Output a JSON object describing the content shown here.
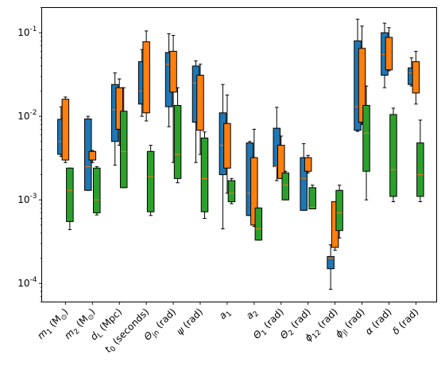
{
  "chart_data": {
    "type": "box",
    "y_scale": "log",
    "ylim": [
      6e-05,
      0.2
    ],
    "y_tick_labels": [
      "10^-4",
      "10^-3",
      "10^-2",
      "10^-1"
    ],
    "y_tick_values": [
      0.0001,
      0.001,
      0.01,
      0.1
    ],
    "legend": "none",
    "grid": false,
    "categories": [
      {
        "key": "m1",
        "base": "m",
        "sub": "1",
        "unit": " (M",
        "unit_sub": "⊙",
        "unit_end": ")"
      },
      {
        "key": "m2",
        "base": "m",
        "sub": "2",
        "unit": " (M",
        "unit_sub": "⊙",
        "unit_end": ")"
      },
      {
        "key": "dL",
        "base": "d",
        "sub": "L",
        "unit": " (Mpc)",
        "unit_sub": "",
        "unit_end": ""
      },
      {
        "key": "t0",
        "base": "t",
        "sub": "0",
        "unit": " (seconds)",
        "unit_sub": "",
        "unit_end": ""
      },
      {
        "key": "theta_jn",
        "base": "Θ",
        "sub": "jn",
        "unit": " (rad)",
        "unit_sub": "",
        "unit_end": ""
      },
      {
        "key": "psi",
        "base": "ψ",
        "sub": "",
        "unit": " (rad)",
        "unit_sub": "",
        "unit_end": ""
      },
      {
        "key": "a1",
        "base": "a",
        "sub": "1",
        "unit": "",
        "unit_sub": "",
        "unit_end": ""
      },
      {
        "key": "a2",
        "base": "a",
        "sub": "2",
        "unit": "",
        "unit_sub": "",
        "unit_end": ""
      },
      {
        "key": "theta1",
        "base": "Θ",
        "sub": "1",
        "unit": " (rad)",
        "unit_sub": "",
        "unit_end": ""
      },
      {
        "key": "theta2",
        "base": "Θ",
        "sub": "2",
        "unit": " (rad)",
        "unit_sub": "",
        "unit_end": ""
      },
      {
        "key": "phi12",
        "base": "ϕ",
        "sub": "12",
        "unit": " (rad)",
        "unit_sub": "",
        "unit_end": ""
      },
      {
        "key": "phi_jl",
        "base": "ϕ",
        "sub": "jl",
        "unit": " (rad)",
        "unit_sub": "",
        "unit_end": ""
      },
      {
        "key": "alpha",
        "base": "α",
        "sub": "",
        "unit": " (rad)",
        "unit_sub": "",
        "unit_end": ""
      },
      {
        "key": "delta",
        "base": "δ",
        "sub": "",
        "unit": " (rad)",
        "unit_sub": "",
        "unit_end": ""
      }
    ],
    "series": [
      {
        "color": "#1f77b4",
        "boxes": [
          {
            "whislo": 0.0033,
            "q1": 0.0035,
            "med": 0.005,
            "q3": 0.0092,
            "whishi": 0.013
          },
          {
            "whislo": 0.0013,
            "q1": 0.0013,
            "med": 0.0025,
            "q3": 0.0093,
            "whishi": 0.01
          },
          {
            "whislo": 0.0026,
            "q1": 0.005,
            "med": 0.012,
            "q3": 0.024,
            "whishi": 0.033
          },
          {
            "whislo": 0.01,
            "q1": 0.014,
            "med": 0.02,
            "q3": 0.045,
            "whishi": 0.063
          },
          {
            "whislo": 0.0075,
            "q1": 0.013,
            "med": 0.042,
            "q3": 0.058,
            "whishi": 0.097
          },
          {
            "whislo": 0.0028,
            "q1": 0.0085,
            "med": 0.025,
            "q3": 0.04,
            "whishi": 0.046
          },
          {
            "whislo": 0.00045,
            "q1": 0.002,
            "med": 0.0045,
            "q3": 0.011,
            "whishi": 0.024
          },
          {
            "whislo": 0.00065,
            "q1": 0.00065,
            "med": 0.0012,
            "q3": 0.0048,
            "whishi": 0.005
          },
          {
            "whislo": 0.0017,
            "q1": 0.0025,
            "med": 0.0025,
            "q3": 0.0072,
            "whishi": 0.0128
          },
          {
            "whislo": 0.00075,
            "q1": 0.00075,
            "med": 0.0018,
            "q3": 0.0032,
            "whishi": 0.0047
          },
          {
            "whislo": 8.5e-05,
            "q1": 0.00015,
            "med": 0.0002,
            "q3": 0.00021,
            "whishi": 0.00029
          },
          {
            "whislo": 0.0066,
            "q1": 0.0068,
            "med": 0.013,
            "q3": 0.08,
            "whishi": 0.145
          },
          {
            "whislo": 0.022,
            "q1": 0.031,
            "med": 0.055,
            "q3": 0.1,
            "whishi": 0.13
          },
          {
            "whislo": 0.023,
            "q1": 0.024,
            "med": 0.033,
            "q3": 0.038,
            "whishi": 0.05
          }
        ]
      },
      {
        "color": "#ff7f0e",
        "boxes": [
          {
            "whislo": 0.0028,
            "q1": 0.003,
            "med": 0.006,
            "q3": 0.016,
            "whishi": 0.017
          },
          {
            "whislo": 0.0028,
            "q1": 0.003,
            "med": 0.0035,
            "q3": 0.0038,
            "whishi": 0.0039
          },
          {
            "whislo": 0.0045,
            "q1": 0.007,
            "med": 0.015,
            "q3": 0.022,
            "whishi": 0.028
          },
          {
            "whislo": 0.0088,
            "q1": 0.011,
            "med": 0.025,
            "q3": 0.078,
            "whishi": 0.105
          },
          {
            "whislo": 0.0028,
            "q1": 0.0195,
            "med": 0.025,
            "q3": 0.06,
            "whishi": 0.093
          },
          {
            "whislo": 0.0035,
            "q1": 0.0068,
            "med": 0.022,
            "q3": 0.031,
            "whishi": 0.042
          },
          {
            "whislo": 0.0012,
            "q1": 0.0024,
            "med": 0.0042,
            "q3": 0.0082,
            "whishi": 0.018
          },
          {
            "whislo": 0.00048,
            "q1": 0.0005,
            "med": 0.0011,
            "q3": 0.0032,
            "whishi": 0.007
          },
          {
            "whislo": 0.0018,
            "q1": 0.0018,
            "med": 0.0025,
            "q3": 0.0045,
            "whishi": 0.0058
          },
          {
            "whislo": 0.0021,
            "q1": 0.0022,
            "med": 0.0028,
            "q3": 0.0032,
            "whishi": 0.0034
          },
          {
            "whislo": 0.00025,
            "q1": 0.00027,
            "med": 0.00045,
            "q3": 0.00095,
            "whishi": 0.00095
          },
          {
            "whislo": 0.008,
            "q1": 0.0085,
            "med": 0.034,
            "q3": 0.065,
            "whishi": 0.12
          },
          {
            "whislo": 0.035,
            "q1": 0.036,
            "med": 0.062,
            "q3": 0.088,
            "whishi": 0.115
          },
          {
            "whislo": 0.014,
            "q1": 0.019,
            "med": 0.03,
            "q3": 0.045,
            "whishi": 0.06
          }
        ]
      },
      {
        "color": "#2ca02c",
        "boxes": [
          {
            "whislo": 0.00044,
            "q1": 0.00055,
            "med": 0.0013,
            "q3": 0.0024,
            "whishi": 0.0024
          },
          {
            "whislo": 0.00066,
            "q1": 0.0007,
            "med": 0.001,
            "q3": 0.0024,
            "whishi": 0.0025
          },
          {
            "whislo": 0.0014,
            "q1": 0.0014,
            "med": 0.0038,
            "q3": 0.0115,
            "whishi": 0.022
          },
          {
            "whislo": 0.00065,
            "q1": 0.00072,
            "med": 0.0019,
            "q3": 0.0038,
            "whishi": 0.0045
          },
          {
            "whislo": 0.0016,
            "q1": 0.0018,
            "med": 0.0035,
            "q3": 0.0135,
            "whishi": 0.022
          },
          {
            "whislo": 0.0006,
            "q1": 0.00072,
            "med": 0.0018,
            "q3": 0.0055,
            "whishi": 0.0065
          },
          {
            "whislo": 0.0009,
            "q1": 0.00095,
            "med": 0.0012,
            "q3": 0.0017,
            "whishi": 0.0018
          },
          {
            "whislo": 0.00033,
            "q1": 0.00033,
            "med": 0.00045,
            "q3": 0.0008,
            "whishi": 0.0008
          },
          {
            "whislo": 0.001,
            "q1": 0.001,
            "med": 0.0015,
            "q3": 0.0021,
            "whishi": 0.0022
          },
          {
            "whislo": 0.00078,
            "q1": 0.00078,
            "med": 0.00081,
            "q3": 0.0014,
            "whishi": 0.0015
          },
          {
            "whislo": 0.00035,
            "q1": 0.00043,
            "med": 0.0007,
            "q3": 0.0013,
            "whishi": 0.0015
          },
          {
            "whislo": 0.001,
            "q1": 0.0022,
            "med": 0.0063,
            "q3": 0.0135,
            "whishi": 0.023
          },
          {
            "whislo": 0.00095,
            "q1": 0.0011,
            "med": 0.0023,
            "q3": 0.0105,
            "whishi": 0.0125
          },
          {
            "whislo": 0.00095,
            "q1": 0.0011,
            "med": 0.002,
            "q3": 0.0048,
            "whishi": 0.009
          }
        ]
      }
    ]
  }
}
